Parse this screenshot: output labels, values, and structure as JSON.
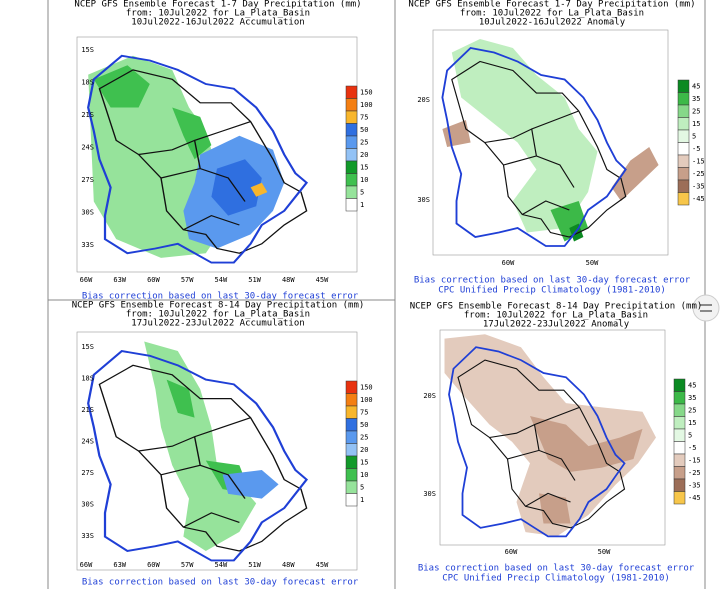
{
  "panels": [
    {
      "title": [
        "NCEP GFS Ensemble Forecast 1-7 Day Precipitation (mm)",
        "from: 10Jul2022   for La_Plata_Basin",
        "10Jul2022-16Jul2022 Accumulation"
      ],
      "footer": [
        "Bias correction based on last 30-day forecast error"
      ],
      "lat_labels": [
        "15S",
        "18S",
        "21S",
        "24S",
        "27S",
        "30S",
        "33S"
      ],
      "lon_labels": [
        "66W",
        "63W",
        "60W",
        "57W",
        "54W",
        "51W",
        "48W",
        "45W"
      ],
      "colorbar": {
        "labels": [
          150,
          100,
          75,
          50,
          25,
          20,
          15,
          10,
          5,
          1
        ],
        "colors": [
          "#e8320f",
          "#f47f12",
          "#f8b62c",
          "#2f6fe0",
          "#5a99ee",
          "#93c2f5",
          "#129a2a",
          "#3fc04f",
          "#96e39b",
          "#ffffff"
        ]
      }
    },
    {
      "title": [
        "NCEP GFS Ensemble Forecast 1-7 Day Precipitation (mm)",
        "from: 10Jul2022   for La_Plata_Basin",
        "10Jul2022-16Jul2022 Anomaly"
      ],
      "footer": [
        "Bias correction based on last 30-day forecast error",
        "CPC Unified Precip Climatology (1981-2010)"
      ],
      "lat_labels": [
        "20S",
        "30S"
      ],
      "lon_labels": [
        "60W",
        "50W"
      ],
      "colorbar": {
        "labels": [
          45,
          35,
          25,
          15,
          5,
          -5,
          -15,
          -25,
          -35,
          -45
        ],
        "colors": [
          "#0b8a22",
          "#3cb948",
          "#86d889",
          "#bfeebf",
          "#e3f8e3",
          "#ffffff",
          "#e3cbbd",
          "#c79f8a",
          "#9c6e58",
          "#f7c64a"
        ]
      }
    },
    {
      "title": [
        "NCEP GFS Ensemble Forecast 8-14 Day Precipitation (mm)",
        "from: 10Jul2022   for La_Plata_Basin",
        "17Jul2022-23Jul2022 Accumulation"
      ],
      "footer": [
        "Bias correction based on last 30-day forecast error"
      ],
      "lat_labels": [
        "15S",
        "18S",
        "21S",
        "24S",
        "27S",
        "30S",
        "33S"
      ],
      "lon_labels": [
        "66W",
        "63W",
        "60W",
        "57W",
        "54W",
        "51W",
        "48W",
        "45W"
      ],
      "colorbar": {
        "labels": [
          150,
          100,
          75,
          50,
          25,
          20,
          15,
          10,
          5,
          1
        ],
        "colors": [
          "#e8320f",
          "#f47f12",
          "#f8b62c",
          "#2f6fe0",
          "#5a99ee",
          "#93c2f5",
          "#129a2a",
          "#3fc04f",
          "#96e39b",
          "#ffffff"
        ]
      }
    },
    {
      "title": [
        "NCEP GFS Ensemble Forecast 8-14 Day Precipitation (mm)",
        "from: 10Jul2022   for La_Plata_Basin",
        "17Jul2022-23Jul2022 Anomaly"
      ],
      "footer": [
        "Bias correction based on last 30-day forecast error",
        "CPC Unified Precip Climatology (1981-2010)"
      ],
      "lat_labels": [
        "20S",
        "30S"
      ],
      "lon_labels": [
        "60W",
        "50W"
      ],
      "colorbar": {
        "labels": [
          45,
          35,
          25,
          15,
          5,
          -5,
          -15,
          -25,
          -35,
          -45
        ],
        "colors": [
          "#0b8a22",
          "#3cb948",
          "#86d889",
          "#bfeebf",
          "#e3f8e3",
          "#ffffff",
          "#e3cbbd",
          "#c79f8a",
          "#9c6e58",
          "#f7c64a"
        ]
      }
    }
  ]
}
